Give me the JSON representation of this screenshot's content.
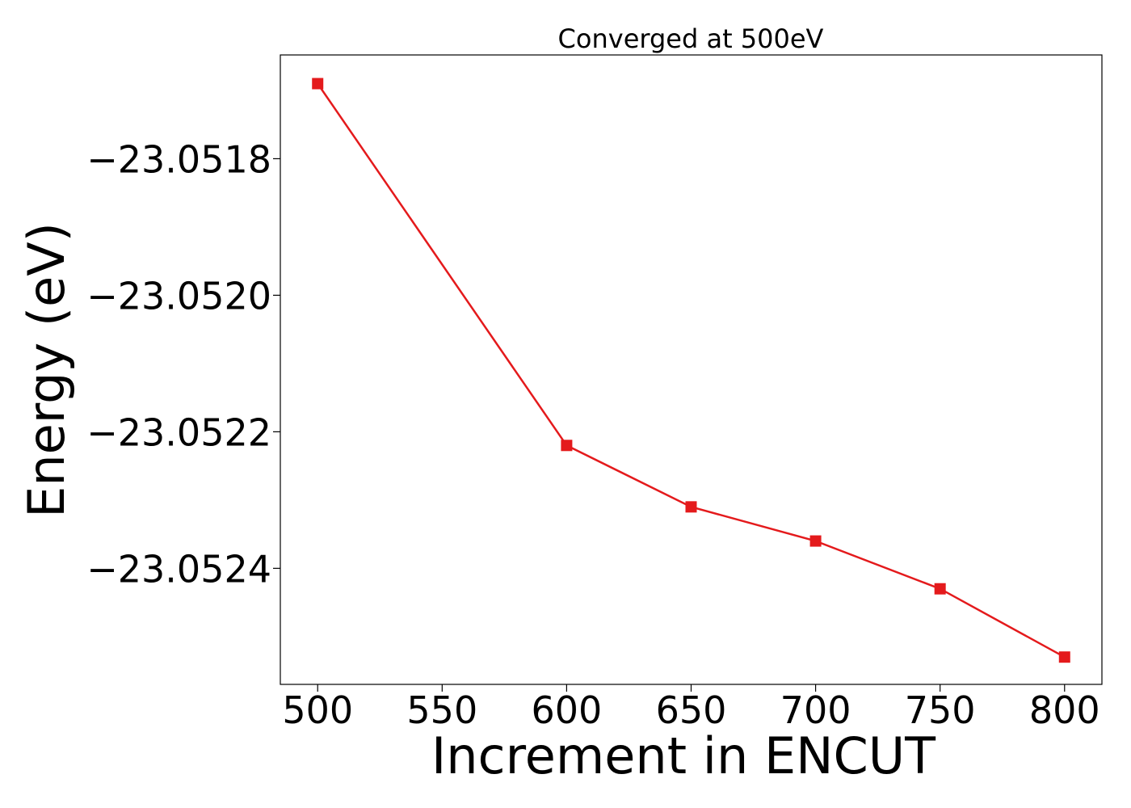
{
  "chart_data": {
    "type": "line",
    "title": "Converged at 500eV",
    "xlabel": "Increment in ENCUT",
    "ylabel": "Energy (eV)",
    "x": [
      500,
      600,
      650,
      700,
      750,
      800
    ],
    "series": [
      {
        "values": [
          -23.05169,
          -23.05222,
          -23.05231,
          -23.05236,
          -23.05243,
          -23.05253
        ],
        "color": "#e41a1c",
        "marker": "square"
      }
    ],
    "x_ticks": [
      500,
      550,
      600,
      650,
      700,
      750,
      800
    ],
    "x_tick_labels": [
      "500",
      "550",
      "600",
      "650",
      "700",
      "750",
      "800"
    ],
    "y_ticks": [
      -23.0518,
      -23.052,
      -23.0522,
      -23.0524
    ],
    "y_tick_labels": [
      "−23.0518",
      "−23.0520",
      "−23.0522",
      "−23.0524"
    ],
    "xlim": [
      485,
      815
    ],
    "ylim": [
      -23.05257,
      -23.051648
    ],
    "grid": false,
    "legend": "none"
  }
}
